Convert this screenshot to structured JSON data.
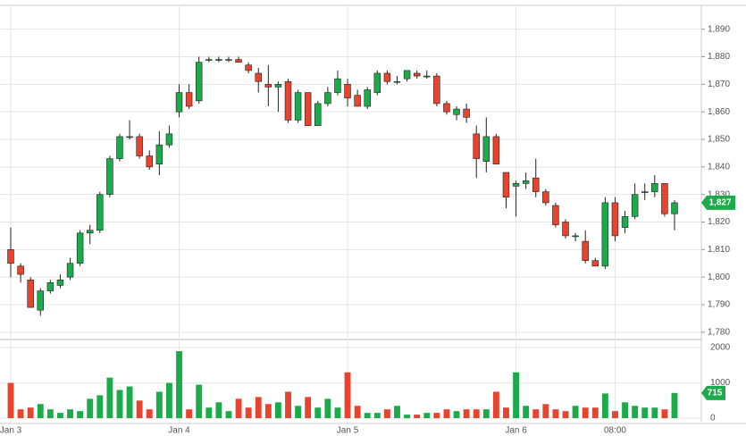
{
  "chart_data": {
    "type": "candlestick",
    "categories": [
      "Jan 3",
      null,
      null,
      null,
      null,
      null,
      null,
      null,
      null,
      null,
      null,
      null,
      null,
      null,
      null,
      null,
      null,
      "Jan 4",
      null,
      null,
      null,
      null,
      null,
      null,
      null,
      null,
      null,
      null,
      null,
      null,
      null,
      null,
      null,
      null,
      "Jan 5",
      null,
      null,
      null,
      null,
      null,
      null,
      null,
      null,
      null,
      null,
      null,
      null,
      null,
      null,
      null,
      null,
      "Jan 6",
      null,
      null,
      null,
      null,
      null,
      null,
      null,
      null,
      null,
      "08:00",
      null,
      null,
      null,
      null,
      null,
      null
    ],
    "open": [
      1810,
      1804,
      1799,
      1788,
      1795,
      1797,
      1800,
      1805,
      1816,
      1817,
      1830,
      1843,
      1851,
      1851,
      1844,
      1841,
      1848,
      1860,
      1867,
      1864,
      1879,
      1879,
      1879,
      1879,
      1877,
      1874,
      1870,
      1869,
      1871,
      1857,
      1867,
      1855,
      1863,
      1867,
      1870,
      1866,
      1862,
      1867,
      1874,
      1871,
      1872,
      1874,
      1873,
      1873,
      1863,
      1859,
      1861,
      1852,
      1842,
      1851,
      1838,
      1833,
      1834,
      1836,
      1831,
      1826,
      1820,
      1815,
      1813,
      1806,
      1804,
      1827,
      1818,
      1822,
      1831,
      1831,
      1834,
      1823
    ],
    "high": [
      1818,
      1805,
      1800,
      1796,
      1799,
      1801,
      1807,
      1817,
      1819,
      1831,
      1844,
      1852,
      1857,
      1852,
      1846,
      1853,
      1855,
      1870,
      1870,
      1880,
      1880,
      1880,
      1880,
      1880,
      1878,
      1876,
      1877,
      1871,
      1872,
      1868,
      1867,
      1864,
      1869,
      1875,
      1872,
      1868,
      1869,
      1875,
      1875,
      1873,
      1875,
      1875,
      1875,
      1874,
      1864,
      1862,
      1863,
      1855,
      1858,
      1852,
      1838,
      1835,
      1838,
      1843,
      1832,
      1827,
      1821,
      1816,
      1817,
      1807,
      1829,
      1829,
      1824,
      1834,
      1834,
      1837,
      1834,
      1828
    ],
    "low": [
      1800,
      1798,
      1789,
      1786,
      1794,
      1796,
      1799,
      1804,
      1812,
      1816,
      1829,
      1842,
      1850,
      1843,
      1839,
      1837,
      1847,
      1858,
      1861,
      1863,
      1878,
      1878,
      1878,
      1878,
      1874,
      1867,
      1862,
      1860,
      1856,
      1856,
      1855,
      1855,
      1862,
      1866,
      1862,
      1862,
      1861,
      1866,
      1870,
      1870,
      1871,
      1872,
      1872,
      1862,
      1859,
      1857,
      1856,
      1836,
      1838,
      1841,
      1825,
      1822,
      1832,
      1829,
      1826,
      1818,
      1814,
      1813,
      1805,
      1804,
      1803,
      1813,
      1816,
      1821,
      1828,
      1829,
      1822,
      1817
    ],
    "close": [
      1805,
      1801,
      1789,
      1795,
      1798,
      1799,
      1805,
      1816,
      1817,
      1830,
      1843,
      1851,
      1851,
      1844,
      1840,
      1848,
      1852,
      1867,
      1862,
      1878,
      1879,
      1879,
      1879,
      1878,
      1875,
      1871,
      1869,
      1870,
      1857,
      1867,
      1855,
      1863,
      1867,
      1872,
      1865,
      1862,
      1868,
      1874,
      1871,
      1871,
      1875,
      1873,
      1873,
      1863,
      1860,
      1861,
      1858,
      1843,
      1851,
      1841,
      1829,
      1834,
      1835,
      1831,
      1827,
      1819,
      1815,
      1815,
      1806,
      1804,
      1827,
      1815,
      1822,
      1830,
      1831,
      1834,
      1823,
      1827
    ],
    "up_color": "#1bab4b",
    "down_color": "#e8432e",
    "ylim": [
      1778,
      1898
    ],
    "yticks": [
      {
        "value": 1780,
        "label": "1,780"
      },
      {
        "value": 1790,
        "label": "1,790"
      },
      {
        "value": 1800,
        "label": "1,800"
      },
      {
        "value": 1810,
        "label": "1,810"
      },
      {
        "value": 1820,
        "label": "1,820"
      },
      {
        "value": 1830,
        "label": "1,830"
      },
      {
        "value": 1840,
        "label": "1,840"
      },
      {
        "value": 1850,
        "label": "1,850"
      },
      {
        "value": 1860,
        "label": "1,860"
      },
      {
        "value": 1870,
        "label": "1,870"
      },
      {
        "value": 1880,
        "label": "1,880"
      },
      {
        "value": 1890,
        "label": "1,890"
      }
    ],
    "last_price": {
      "value": 1827,
      "label": "1,827"
    },
    "grid": true,
    "volume": {
      "values": [
        1000,
        250,
        300,
        400,
        250,
        150,
        250,
        200,
        550,
        650,
        1150,
        800,
        900,
        500,
        250,
        750,
        1000,
        1900,
        250,
        950,
        300,
        450,
        200,
        550,
        300,
        600,
        400,
        450,
        750,
        350,
        600,
        300,
        550,
        300,
        1300,
        350,
        150,
        150,
        250,
        350,
        100,
        100,
        150,
        150,
        250,
        200,
        250,
        250,
        250,
        750,
        300,
        1300,
        350,
        250,
        400,
        250,
        200,
        350,
        300,
        300,
        700,
        200,
        450,
        350,
        300,
        300,
        250,
        715
      ],
      "ylim": [
        -100,
        2180
      ],
      "yticks": [
        0,
        1000,
        2000
      ]
    }
  }
}
